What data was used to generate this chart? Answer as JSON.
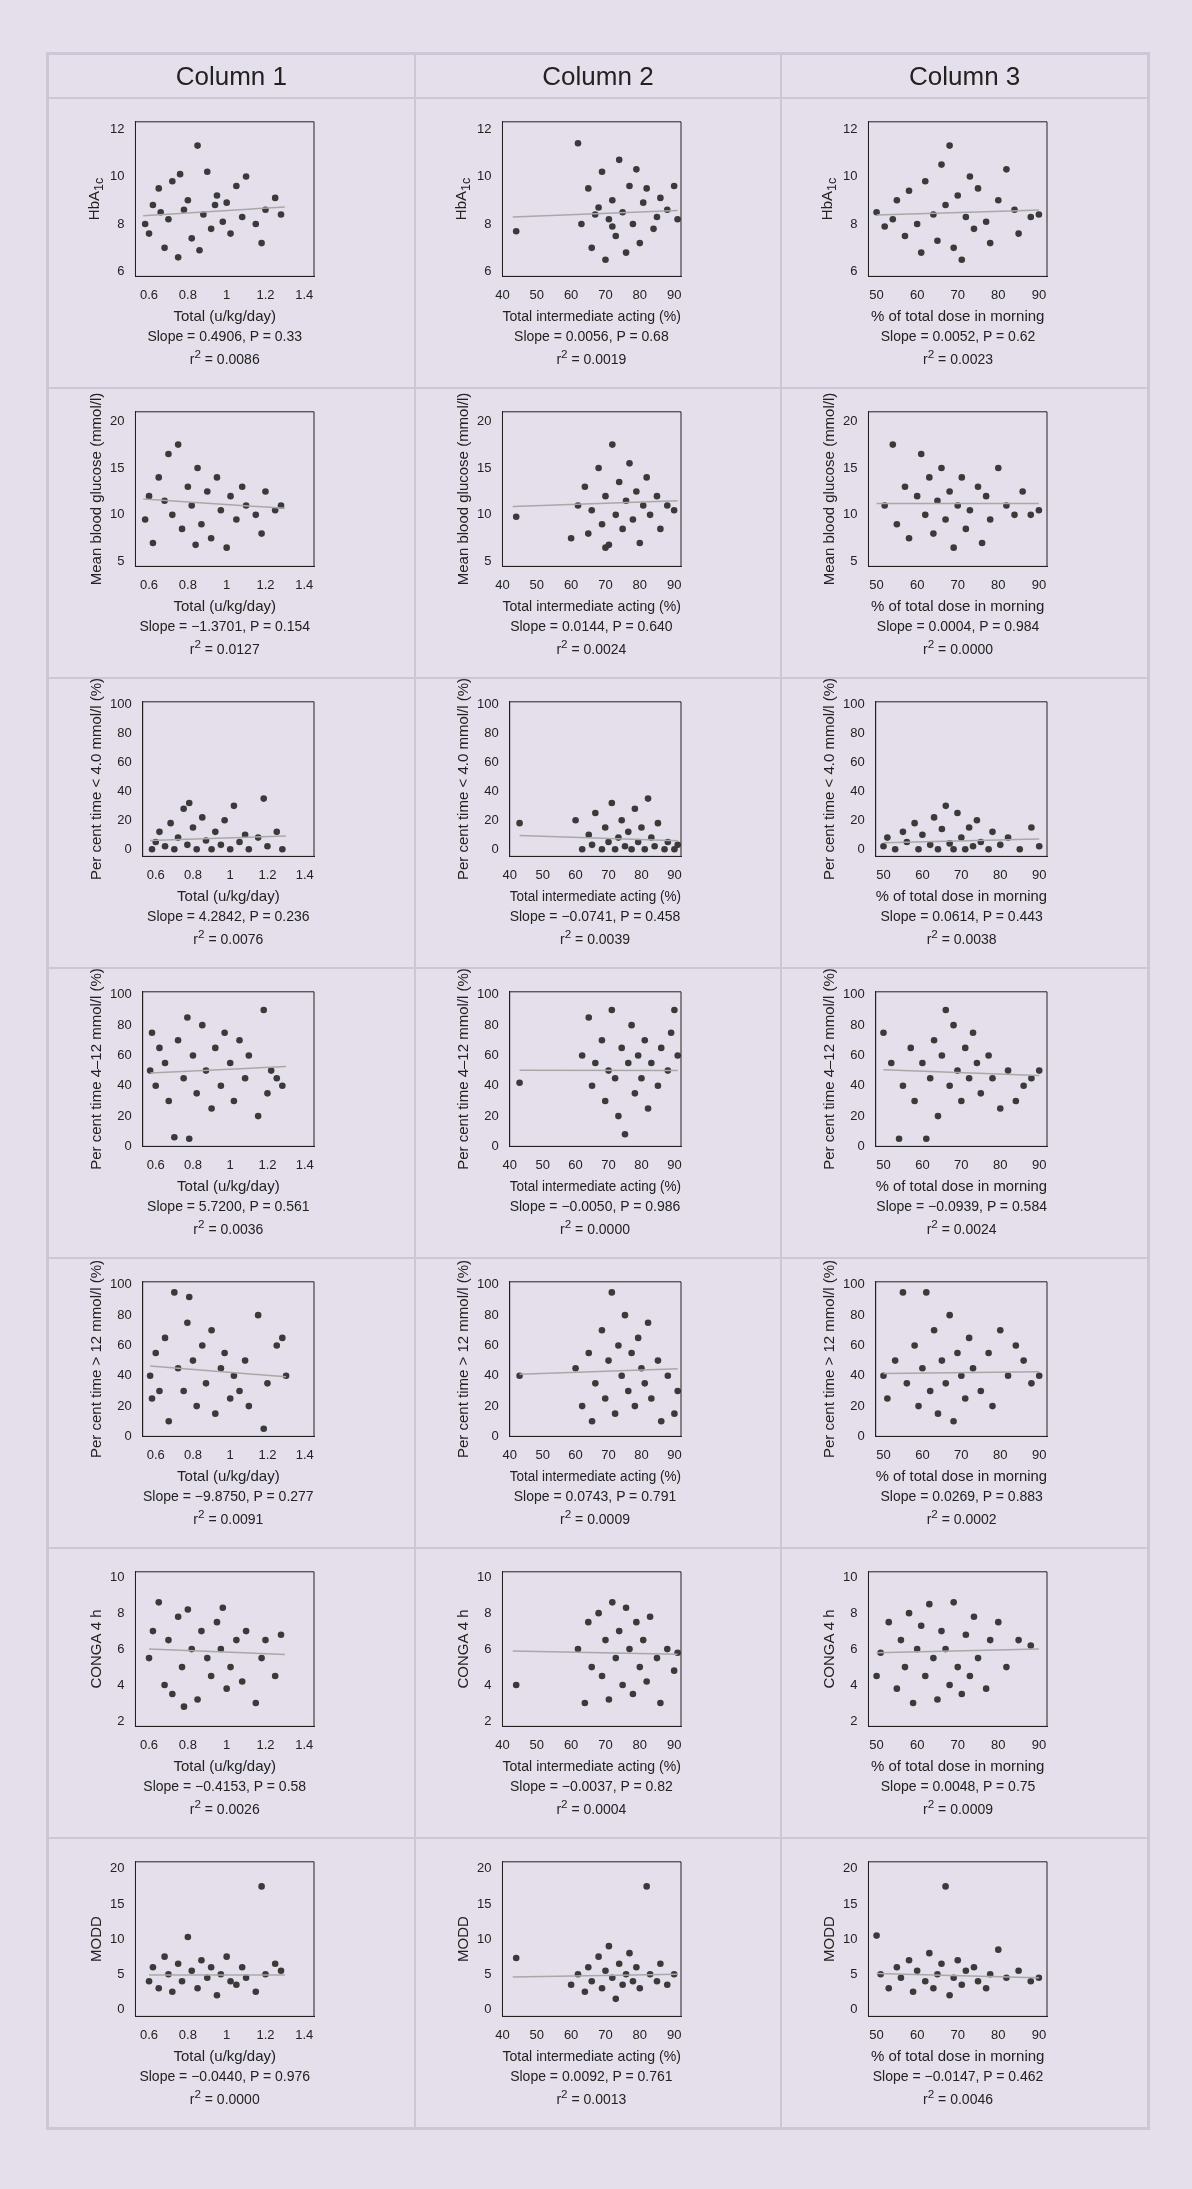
{
  "chart_data": [
    {
      "type": "scatter",
      "title": "Column 1",
      "xlabel": "Total (u/kg/day)",
      "ylabel": "HbA$_{1c}$",
      "marker": "circle",
      "xlim": [
        0.53,
        1.45
      ],
      "xticks": [
        0.6,
        0.8,
        1,
        1.2,
        1.4
      ],
      "ylim": [
        5.8,
        12.3
      ],
      "yticks": [
        6,
        8,
        10,
        12
      ],
      "annotations": [
        "Slope = 0.4906, P = 0.33",
        "r$^{2}$ = 0.0086"
      ],
      "series": [
        {
          "type": "scatter",
          "color": "#3a3a3a",
          "x": [
            0.58,
            0.6,
            0.62,
            0.65,
            0.68,
            0.7,
            0.72,
            0.75,
            0.78,
            0.8,
            0.82,
            0.85,
            0.88,
            0.9,
            0.92,
            0.95,
            0.98,
            1.0,
            1.02,
            1.05,
            1.08,
            1.1,
            1.15,
            1.18,
            1.2,
            1.25,
            1.28,
            0.86,
            0.76,
            0.66,
            0.94
          ],
          "values": [
            8.0,
            7.6,
            8.8,
            9.5,
            7.0,
            8.2,
            9.8,
            6.6,
            8.6,
            9.0,
            7.4,
            11.3,
            8.4,
            10.2,
            7.8,
            9.2,
            8.1,
            8.9,
            7.6,
            9.6,
            8.3,
            10.0,
            8.0,
            7.2,
            8.6,
            9.1,
            8.4,
            6.9,
            10.1,
            8.5,
            8.8
          ]
        },
        {
          "type": "line",
          "color": "#a8a8a8",
          "x": [
            0.57,
            1.3
          ],
          "values": [
            8.35,
            8.72
          ],
          "marker": "none"
        }
      ]
    },
    {
      "type": "scatter",
      "title": "Column 2",
      "xlabel": "Total intermediate acting (%)",
      "ylabel": "HbA$_{1c}$",
      "marker": "circle",
      "xlim": [
        40,
        92
      ],
      "xticks": [
        40,
        50,
        60,
        70,
        80,
        90
      ],
      "ylim": [
        5.8,
        12.3
      ],
      "yticks": [
        6,
        8,
        10,
        12
      ],
      "annotations": [
        "Slope = 0.0056, P = 0.68",
        "r$^{2}$ = 0.0019"
      ],
      "series": [
        {
          "type": "scatter",
          "color": "#3a3a3a",
          "x": [
            44,
            62,
            63,
            65,
            66,
            68,
            69,
            70,
            71,
            72,
            73,
            74,
            75,
            76,
            77,
            78,
            79,
            80,
            81,
            82,
            84,
            85,
            86,
            88,
            90,
            91,
            67,
            72
          ],
          "values": [
            7.7,
            11.4,
            8.0,
            9.5,
            7.0,
            8.7,
            10.2,
            6.5,
            8.2,
            9.0,
            7.5,
            10.7,
            8.5,
            6.8,
            9.6,
            8.0,
            10.3,
            7.2,
            8.9,
            9.5,
            7.8,
            8.3,
            9.1,
            8.6,
            9.6,
            8.2,
            8.4,
            7.9
          ]
        },
        {
          "type": "line",
          "color": "#a8a8a8",
          "x": [
            43,
            91
          ],
          "values": [
            8.3,
            8.57
          ],
          "marker": "none"
        }
      ]
    },
    {
      "type": "scatter",
      "title": "Column 3",
      "xlabel": "% of total dose in morning",
      "ylabel": "HbA$_{1c}$",
      "marker": "circle",
      "xlim": [
        48,
        92
      ],
      "xticks": [
        50,
        60,
        70,
        80,
        90
      ],
      "ylim": [
        5.8,
        12.3
      ],
      "yticks": [
        6,
        8,
        10,
        12
      ],
      "annotations": [
        "Slope = 0.0052, P = 0.62",
        "r$^{2}$ = 0.0023"
      ],
      "series": [
        {
          "type": "scatter",
          "color": "#3a3a3a",
          "x": [
            50,
            52,
            54,
            55,
            57,
            58,
            60,
            61,
            62,
            64,
            65,
            66,
            67,
            68,
            69,
            70,
            71,
            72,
            73,
            74,
            75,
            77,
            78,
            80,
            82,
            84,
            85,
            88,
            90
          ],
          "values": [
            8.5,
            7.9,
            8.2,
            9.0,
            7.5,
            9.4,
            8.0,
            6.8,
            9.8,
            8.4,
            7.3,
            10.5,
            8.8,
            11.3,
            7.0,
            9.2,
            6.5,
            8.3,
            10.0,
            7.8,
            9.5,
            8.1,
            7.2,
            9.0,
            10.3,
            8.6,
            7.6,
            8.3,
            8.4
          ]
        },
        {
          "type": "line",
          "color": "#a8a8a8",
          "x": [
            50,
            90
          ],
          "values": [
            8.38,
            8.59
          ],
          "marker": "none"
        }
      ]
    },
    {
      "type": "scatter",
      "xlabel": "Total (u/kg/day)",
      "ylabel": "Mean blood glucose (mmol/l)",
      "marker": "circle",
      "xlim": [
        0.53,
        1.45
      ],
      "xticks": [
        0.6,
        0.8,
        1,
        1.2,
        1.4
      ],
      "ylim": [
        4.5,
        21
      ],
      "yticks": [
        5,
        10,
        15,
        20
      ],
      "annotations": [
        "Slope = −1.3701, P = 0.154",
        "r$^{2}$ = 0.0127"
      ],
      "series": [
        {
          "type": "scatter",
          "color": "#3a3a3a",
          "x": [
            0.58,
            0.6,
            0.62,
            0.65,
            0.68,
            0.7,
            0.72,
            0.75,
            0.77,
            0.8,
            0.82,
            0.85,
            0.87,
            0.9,
            0.92,
            0.95,
            0.97,
            1.0,
            1.02,
            1.05,
            1.08,
            1.1,
            1.15,
            1.18,
            1.2,
            1.25,
            1.28,
            0.84
          ],
          "values": [
            9.5,
            12,
            7,
            14,
            11.5,
            16.5,
            10,
            17.5,
            8.5,
            13,
            11,
            15,
            9,
            12.5,
            7.5,
            14,
            10.5,
            6.5,
            12,
            9.5,
            13,
            11,
            10,
            8,
            12.5,
            10.5,
            11,
            6.8
          ]
        },
        {
          "type": "line",
          "color": "#a8a8a8",
          "x": [
            0.57,
            1.3
          ],
          "values": [
            11.7,
            10.7
          ],
          "marker": "none"
        }
      ]
    },
    {
      "type": "scatter",
      "xlabel": "Total intermediate acting (%)",
      "ylabel": "Mean blood glucose (mmol/l)",
      "marker": "circle",
      "xlim": [
        40,
        92
      ],
      "xticks": [
        40,
        50,
        60,
        70,
        80,
        90
      ],
      "ylim": [
        4.5,
        21
      ],
      "yticks": [
        5,
        10,
        15,
        20
      ],
      "annotations": [
        "Slope = 0.0144, P = 0.640",
        "r$^{2}$ = 0.0024"
      ],
      "series": [
        {
          "type": "scatter",
          "color": "#3a3a3a",
          "x": [
            44,
            60,
            62,
            64,
            65,
            66,
            68,
            69,
            70,
            71,
            72,
            73,
            74,
            75,
            76,
            77,
            78,
            79,
            80,
            81,
            82,
            83,
            85,
            86,
            88,
            90,
            70
          ],
          "values": [
            9.8,
            7.5,
            11,
            13,
            8,
            10.5,
            15,
            9,
            12,
            6.8,
            17.5,
            10,
            13.5,
            8.5,
            11.5,
            15.5,
            9.5,
            12.5,
            7,
            11,
            14,
            10,
            12,
            8.5,
            11,
            10.5,
            6.5
          ]
        },
        {
          "type": "line",
          "color": "#a8a8a8",
          "x": [
            43,
            91
          ],
          "values": [
            10.9,
            11.5
          ],
          "marker": "none"
        }
      ]
    },
    {
      "type": "scatter",
      "xlabel": "% of total dose in morning",
      "ylabel": "Mean blood glucose (mmol/l)",
      "marker": "circle",
      "xlim": [
        48,
        92
      ],
      "xticks": [
        50,
        60,
        70,
        80,
        90
      ],
      "ylim": [
        4.5,
        21
      ],
      "yticks": [
        5,
        10,
        15,
        20
      ],
      "annotations": [
        "Slope = 0.0004, P = 0.984",
        "r$^{2}$ = 0.0000"
      ],
      "series": [
        {
          "type": "scatter",
          "color": "#3a3a3a",
          "x": [
            52,
            54,
            55,
            57,
            58,
            60,
            61,
            62,
            63,
            64,
            65,
            66,
            67,
            68,
            69,
            70,
            71,
            72,
            73,
            75,
            76,
            77,
            78,
            80,
            82,
            84,
            86,
            88,
            90
          ],
          "values": [
            11,
            17.5,
            9,
            13,
            7.5,
            12,
            16.5,
            10,
            14,
            8,
            11.5,
            15,
            9.5,
            12.5,
            6.5,
            11,
            14,
            8.5,
            10.5,
            13,
            7,
            12,
            9.5,
            15,
            11,
            10,
            12.5,
            10,
            10.5
          ]
        },
        {
          "type": "line",
          "color": "#a8a8a8",
          "x": [
            50,
            90
          ],
          "values": [
            11.2,
            11.2
          ],
          "marker": "none"
        }
      ]
    },
    {
      "type": "scatter",
      "xlabel": "Total (u/kg/day)",
      "ylabel": "Per cent time < 4.0 mmol/l (%)",
      "marker": "circle",
      "xlim": [
        0.53,
        1.45
      ],
      "xticks": [
        0.6,
        0.8,
        1,
        1.2,
        1.4
      ],
      "ylim": [
        -5,
        102
      ],
      "yticks": [
        0,
        20,
        40,
        60,
        80,
        100
      ],
      "annotations": [
        "Slope = 4.2842, P = 0.236",
        "r$^{2}$ = 0.0076"
      ],
      "series": [
        {
          "type": "scatter",
          "color": "#3a3a3a",
          "x": [
            0.58,
            0.6,
            0.62,
            0.65,
            0.68,
            0.7,
            0.72,
            0.75,
            0.77,
            0.8,
            0.82,
            0.85,
            0.87,
            0.9,
            0.92,
            0.95,
            0.97,
            1.0,
            1.02,
            1.05,
            1.08,
            1.1,
            1.15,
            1.18,
            1.2,
            1.25,
            1.28,
            0.78
          ],
          "values": [
            0,
            5,
            12,
            2,
            18,
            0,
            8,
            28,
            3,
            15,
            0,
            22,
            6,
            0,
            12,
            3,
            20,
            0,
            30,
            5,
            10,
            0,
            8,
            35,
            2,
            12,
            0,
            32
          ]
        },
        {
          "type": "line",
          "color": "#a8a8a8",
          "x": [
            0.57,
            1.3
          ],
          "values": [
            6,
            9.1
          ],
          "marker": "none"
        }
      ]
    },
    {
      "type": "scatter",
      "xlabel": "Total intermediate acting (%)",
      "ylabel": "Per cent time < 4.0 mmol/l (%)",
      "marker": "circle",
      "xlim": [
        40,
        92
      ],
      "xticks": [
        40,
        50,
        60,
        70,
        80,
        90
      ],
      "ylim": [
        -5,
        102
      ],
      "yticks": [
        0,
        20,
        40,
        60,
        80,
        100
      ],
      "annotations": [
        "Slope = −0.0741, P = 0.458",
        "r$^{2}$ = 0.0039"
      ],
      "series": [
        {
          "type": "scatter",
          "color": "#3a3a3a",
          "x": [
            43,
            60,
            62,
            64,
            65,
            66,
            68,
            69,
            70,
            71,
            72,
            73,
            74,
            75,
            76,
            77,
            78,
            79,
            80,
            81,
            82,
            83,
            84,
            85,
            87,
            88,
            90,
            91
          ],
          "values": [
            18,
            20,
            0,
            10,
            3,
            25,
            0,
            15,
            5,
            32,
            0,
            8,
            20,
            2,
            12,
            0,
            28,
            5,
            15,
            0,
            35,
            8,
            2,
            18,
            0,
            5,
            0,
            3
          ]
        },
        {
          "type": "line",
          "color": "#a8a8a8",
          "x": [
            43,
            91
          ],
          "values": [
            9.5,
            5.9
          ],
          "marker": "none"
        }
      ]
    },
    {
      "type": "scatter",
      "xlabel": "% of total dose in morning",
      "ylabel": "Per cent time < 4.0 mmol/l (%)",
      "marker": "circle",
      "xlim": [
        48,
        92
      ],
      "xticks": [
        50,
        60,
        70,
        80,
        90
      ],
      "ylim": [
        -5,
        102
      ],
      "yticks": [
        0,
        20,
        40,
        60,
        80,
        100
      ],
      "annotations": [
        "Slope = 0.0614, P = 0.443",
        "r$^{2}$ = 0.0038"
      ],
      "series": [
        {
          "type": "scatter",
          "color": "#3a3a3a",
          "x": [
            50,
            51,
            53,
            55,
            56,
            58,
            59,
            60,
            62,
            63,
            64,
            65,
            66,
            67,
            68,
            69,
            70,
            71,
            72,
            73,
            74,
            75,
            77,
            78,
            80,
            82,
            85,
            88,
            90
          ],
          "values": [
            2,
            8,
            0,
            12,
            5,
            18,
            0,
            10,
            3,
            22,
            0,
            14,
            30,
            4,
            0,
            25,
            8,
            0,
            15,
            2,
            20,
            5,
            0,
            12,
            3,
            8,
            0,
            15,
            2
          ]
        },
        {
          "type": "line",
          "color": "#a8a8a8",
          "x": [
            50,
            90
          ],
          "values": [
            4.5,
            7
          ],
          "marker": "none"
        }
      ]
    },
    {
      "type": "scatter",
      "xlabel": "Total (u/kg/day)",
      "ylabel": "Per cent time 4–12 mmol/l (%)",
      "marker": "circle",
      "xlim": [
        0.53,
        1.45
      ],
      "xticks": [
        0.6,
        0.8,
        1,
        1.2,
        1.4
      ],
      "ylim": [
        0,
        102
      ],
      "yticks": [
        0,
        20,
        40,
        60,
        80,
        100
      ],
      "annotations": [
        "Slope = 5.7200, P = 0.561",
        "r$^{2}$ = 0.0036"
      ],
      "series": [
        {
          "type": "scatter",
          "color": "#3a3a3a",
          "x": [
            0.57,
            0.58,
            0.6,
            0.62,
            0.65,
            0.67,
            0.7,
            0.72,
            0.75,
            0.77,
            0.78,
            0.8,
            0.82,
            0.85,
            0.87,
            0.9,
            0.92,
            0.95,
            0.97,
            1.0,
            1.02,
            1.05,
            1.08,
            1.1,
            1.15,
            1.18,
            1.2,
            1.22,
            1.25,
            1.28
          ],
          "values": [
            50,
            75,
            40,
            65,
            55,
            30,
            6,
            70,
            45,
            85,
            5,
            60,
            35,
            80,
            50,
            25,
            65,
            40,
            75,
            55,
            30,
            70,
            45,
            60,
            20,
            90,
            35,
            50,
            45,
            40
          ]
        },
        {
          "type": "line",
          "color": "#a8a8a8",
          "x": [
            0.57,
            1.3
          ],
          "values": [
            48.5,
            52.7
          ],
          "marker": "none"
        }
      ]
    },
    {
      "type": "scatter",
      "xlabel": "Total intermediate acting (%)",
      "ylabel": "Per cent time 4–12 mmol/l (%)",
      "marker": "circle",
      "xlim": [
        40,
        92
      ],
      "xticks": [
        40,
        50,
        60,
        70,
        80,
        90
      ],
      "ylim": [
        0,
        102
      ],
      "yticks": [
        0,
        20,
        40,
        60,
        80,
        100
      ],
      "annotations": [
        "Slope = −0.0050, P = 0.986",
        "r$^{2}$ = 0.0000"
      ],
      "series": [
        {
          "type": "scatter",
          "color": "#3a3a3a",
          "x": [
            43,
            62,
            64,
            65,
            66,
            68,
            69,
            70,
            71,
            72,
            73,
            74,
            75,
            76,
            77,
            78,
            79,
            80,
            81,
            82,
            83,
            85,
            86,
            88,
            89,
            90,
            91
          ],
          "values": [
            42,
            60,
            85,
            40,
            55,
            70,
            30,
            50,
            90,
            45,
            20,
            65,
            8,
            55,
            80,
            35,
            60,
            45,
            70,
            25,
            55,
            40,
            65,
            50,
            75,
            90,
            60
          ]
        },
        {
          "type": "line",
          "color": "#a8a8a8",
          "x": [
            43,
            91
          ],
          "values": [
            50.2,
            50
          ],
          "marker": "none"
        }
      ]
    },
    {
      "type": "scatter",
      "xlabel": "% of total dose in morning",
      "ylabel": "Per cent time 4–12 mmol/l (%)",
      "marker": "circle",
      "xlim": [
        48,
        92
      ],
      "xticks": [
        50,
        60,
        70,
        80,
        90
      ],
      "ylim": [
        0,
        102
      ],
      "yticks": [
        0,
        20,
        40,
        60,
        80,
        100
      ],
      "annotations": [
        "Slope = −0.0939, P = 0.584",
        "r$^{2}$ = 0.0024"
      ],
      "series": [
        {
          "type": "scatter",
          "color": "#3a3a3a",
          "x": [
            50,
            52,
            54,
            55,
            57,
            58,
            60,
            61,
            62,
            63,
            64,
            65,
            66,
            67,
            68,
            69,
            70,
            71,
            72,
            73,
            74,
            75,
            77,
            78,
            80,
            82,
            84,
            86,
            88,
            90
          ],
          "values": [
            75,
            55,
            5,
            40,
            65,
            30,
            55,
            5,
            45,
            70,
            20,
            60,
            90,
            40,
            80,
            50,
            30,
            65,
            45,
            75,
            55,
            35,
            60,
            45,
            25,
            50,
            30,
            40,
            45,
            50
          ]
        },
        {
          "type": "line",
          "color": "#a8a8a8",
          "x": [
            50,
            90
          ],
          "values": [
            50.5,
            46.7
          ],
          "marker": "none"
        }
      ]
    },
    {
      "type": "scatter",
      "xlabel": "Total (u/kg/day)",
      "ylabel": "Per cent time > 12 mmol/l (%)",
      "marker": "circle",
      "xlim": [
        0.53,
        1.45
      ],
      "xticks": [
        0.6,
        0.8,
        1,
        1.2,
        1.4
      ],
      "ylim": [
        0,
        102
      ],
      "yticks": [
        0,
        20,
        40,
        60,
        80,
        100
      ],
      "annotations": [
        "Slope = −9.8750, P = 0.277",
        "r$^{2}$ = 0.0091"
      ],
      "series": [
        {
          "type": "scatter",
          "color": "#3a3a3a",
          "x": [
            0.57,
            0.58,
            0.6,
            0.62,
            0.65,
            0.67,
            0.7,
            0.72,
            0.75,
            0.77,
            0.78,
            0.8,
            0.82,
            0.85,
            0.87,
            0.9,
            0.92,
            0.95,
            0.97,
            1.0,
            1.02,
            1.05,
            1.08,
            1.1,
            1.15,
            1.18,
            1.2,
            1.25,
            1.28,
            1.3
          ],
          "values": [
            40,
            25,
            55,
            30,
            65,
            10,
            95,
            45,
            30,
            75,
            92,
            50,
            20,
            60,
            35,
            70,
            15,
            45,
            55,
            25,
            40,
            30,
            50,
            20,
            80,
            5,
            35,
            60,
            65,
            40
          ]
        },
        {
          "type": "line",
          "color": "#a8a8a8",
          "x": [
            0.57,
            1.3
          ],
          "values": [
            46.5,
            39.3
          ],
          "marker": "none"
        }
      ]
    },
    {
      "type": "scatter",
      "xlabel": "Total intermediate acting (%)",
      "ylabel": "Per cent time > 12 mmol/l (%)",
      "marker": "circle",
      "xlim": [
        40,
        92
      ],
      "xticks": [
        40,
        50,
        60,
        70,
        80,
        90
      ],
      "ylim": [
        0,
        102
      ],
      "yticks": [
        0,
        20,
        40,
        60,
        80,
        100
      ],
      "annotations": [
        "Slope = 0.0743, P = 0.791",
        "r$^{2}$ = 0.0009"
      ],
      "series": [
        {
          "type": "scatter",
          "color": "#3a3a3a",
          "x": [
            43,
            60,
            62,
            64,
            65,
            66,
            68,
            69,
            70,
            71,
            72,
            73,
            74,
            75,
            76,
            77,
            78,
            79,
            80,
            81,
            82,
            83,
            85,
            86,
            88,
            90,
            91
          ],
          "values": [
            40,
            45,
            20,
            55,
            10,
            35,
            70,
            25,
            50,
            95,
            15,
            60,
            40,
            80,
            30,
            55,
            20,
            65,
            45,
            35,
            75,
            25,
            50,
            10,
            40,
            15,
            30
          ]
        },
        {
          "type": "line",
          "color": "#a8a8a8",
          "x": [
            43,
            91
          ],
          "values": [
            41,
            44.6
          ],
          "marker": "none"
        }
      ]
    },
    {
      "type": "scatter",
      "xlabel": "% of total dose in morning",
      "ylabel": "Per cent time > 12 mmol/l (%)",
      "marker": "circle",
      "xlim": [
        48,
        92
      ],
      "xticks": [
        50,
        60,
        70,
        80,
        90
      ],
      "ylim": [
        0,
        102
      ],
      "yticks": [
        0,
        20,
        40,
        60,
        80,
        100
      ],
      "annotations": [
        "Slope = 0.0269, P = 0.883",
        "r$^{2}$ = 0.0002"
      ],
      "series": [
        {
          "type": "scatter",
          "color": "#3a3a3a",
          "x": [
            50,
            51,
            53,
            55,
            56,
            58,
            59,
            60,
            61,
            62,
            63,
            64,
            65,
            66,
            67,
            68,
            69,
            70,
            71,
            72,
            73,
            75,
            77,
            78,
            80,
            82,
            84,
            86,
            88,
            90
          ],
          "values": [
            40,
            25,
            50,
            95,
            35,
            60,
            20,
            45,
            95,
            30,
            70,
            15,
            50,
            35,
            80,
            10,
            55,
            40,
            25,
            65,
            45,
            30,
            55,
            20,
            70,
            40,
            60,
            50,
            35,
            40
          ]
        },
        {
          "type": "line",
          "color": "#a8a8a8",
          "x": [
            50,
            90
          ],
          "values": [
            41.5,
            42.6
          ],
          "marker": "none"
        }
      ]
    },
    {
      "type": "scatter",
      "xlabel": "Total (u/kg/day)",
      "ylabel": "CONGA 4 h",
      "marker": "circle",
      "xlim": [
        0.53,
        1.45
      ],
      "xticks": [
        0.6,
        0.8,
        1,
        1.2,
        1.4
      ],
      "ylim": [
        1.7,
        10.3
      ],
      "yticks": [
        2,
        4,
        6,
        8,
        10
      ],
      "annotations": [
        "Slope = −0.4153, P = 0.58",
        "r$^{2}$ = 0.0026"
      ],
      "series": [
        {
          "type": "scatter",
          "color": "#3a3a3a",
          "x": [
            0.6,
            0.62,
            0.65,
            0.68,
            0.7,
            0.72,
            0.75,
            0.77,
            0.8,
            0.82,
            0.85,
            0.87,
            0.9,
            0.92,
            0.95,
            0.97,
            1.0,
            1.02,
            1.05,
            1.08,
            1.1,
            1.15,
            1.18,
            1.2,
            1.25,
            1.28,
            0.78,
            0.98
          ],
          "values": [
            5.5,
            7,
            8.6,
            4,
            6.5,
            3.5,
            7.8,
            5,
            8.2,
            6,
            3.2,
            7,
            5.5,
            4.5,
            7.5,
            6,
            3.8,
            5,
            6.5,
            4.2,
            7,
            3,
            5.5,
            6.5,
            4.5,
            6.8,
            2.8,
            8.3
          ]
        },
        {
          "type": "line",
          "color": "#a8a8a8",
          "x": [
            0.6,
            1.3
          ],
          "values": [
            6,
            5.7
          ],
          "marker": "none"
        }
      ]
    },
    {
      "type": "scatter",
      "xlabel": "Total intermediate acting (%)",
      "ylabel": "CONGA 4 h",
      "marker": "circle",
      "xlim": [
        40,
        92
      ],
      "xticks": [
        40,
        50,
        60,
        70,
        80,
        90
      ],
      "ylim": [
        1.7,
        10.3
      ],
      "yticks": [
        2,
        4,
        6,
        8,
        10
      ],
      "annotations": [
        "Slope = −0.0037, P = 0.82",
        "r$^{2}$ = 0.0004"
      ],
      "series": [
        {
          "type": "scatter",
          "color": "#3a3a3a",
          "x": [
            44,
            62,
            64,
            65,
            66,
            68,
            69,
            70,
            71,
            72,
            73,
            74,
            75,
            76,
            77,
            78,
            79,
            80,
            81,
            82,
            83,
            85,
            86,
            88,
            90,
            91
          ],
          "values": [
            4,
            6,
            3,
            7.5,
            5,
            8,
            4.5,
            6.5,
            3.2,
            8.6,
            5.5,
            7,
            4,
            8.3,
            6,
            3.5,
            7.5,
            5,
            6.5,
            4.2,
            7.8,
            5.5,
            3,
            6,
            4.8,
            5.8
          ]
        },
        {
          "type": "line",
          "color": "#a8a8a8",
          "x": [
            43,
            91
          ],
          "values": [
            5.9,
            5.72
          ],
          "marker": "none"
        }
      ]
    },
    {
      "type": "scatter",
      "xlabel": "% of total dose in morning",
      "ylabel": "CONGA 4 h",
      "marker": "circle",
      "xlim": [
        48,
        92
      ],
      "xticks": [
        50,
        60,
        70,
        80,
        90
      ],
      "ylim": [
        1.7,
        10.3
      ],
      "yticks": [
        2,
        4,
        6,
        8,
        10
      ],
      "annotations": [
        "Slope = 0.0048, P = 0.75",
        "r$^{2}$ = 0.0009"
      ],
      "series": [
        {
          "type": "scatter",
          "color": "#3a3a3a",
          "x": [
            50,
            51,
            53,
            55,
            56,
            57,
            58,
            59,
            60,
            61,
            62,
            63,
            64,
            65,
            66,
            67,
            68,
            69,
            70,
            71,
            72,
            73,
            74,
            75,
            77,
            78,
            80,
            82,
            85,
            88
          ],
          "values": [
            4.5,
            5.8,
            7.5,
            3.8,
            6.5,
            5,
            8,
            3,
            6,
            7.3,
            4.5,
            8.5,
            5.5,
            3.2,
            7,
            6,
            4,
            8.6,
            5,
            3.5,
            6.8,
            4.5,
            7.8,
            5.5,
            3.8,
            6.5,
            7.5,
            5,
            6.5,
            6.2
          ]
        },
        {
          "type": "line",
          "color": "#a8a8a8",
          "x": [
            50,
            90
          ],
          "values": [
            5.8,
            6
          ],
          "marker": "none"
        }
      ]
    },
    {
      "type": "scatter",
      "xlabel": "Total (u/kg/day)",
      "ylabel": "MODD",
      "marker": "circle",
      "xlim": [
        0.53,
        1.45
      ],
      "xticks": [
        0.6,
        0.8,
        1,
        1.2,
        1.4
      ],
      "ylim": [
        -1,
        21
      ],
      "yticks": [
        0,
        5,
        10,
        15,
        20
      ],
      "annotations": [
        "Slope = −0.0440, P = 0.976",
        "r$^{2}$ = 0.0000"
      ],
      "series": [
        {
          "type": "scatter",
          "color": "#3a3a3a",
          "x": [
            0.6,
            0.62,
            0.65,
            0.68,
            0.7,
            0.72,
            0.75,
            0.77,
            0.8,
            0.82,
            0.85,
            0.87,
            0.9,
            0.92,
            0.95,
            0.97,
            1.0,
            1.02,
            1.05,
            1.08,
            1.1,
            1.15,
            1.18,
            1.2,
            1.25,
            1.28
          ],
          "values": [
            4,
            6,
            3,
            7.5,
            5,
            2.5,
            6.5,
            4,
            10.3,
            5.5,
            3,
            7,
            4.5,
            6,
            2,
            5,
            7.5,
            4,
            3.5,
            6,
            4.5,
            2.5,
            17.5,
            5,
            6.5,
            5.5
          ]
        },
        {
          "type": "line",
          "color": "#a8a8a8",
          "x": [
            0.6,
            1.3
          ],
          "values": [
            4.9,
            4.9
          ],
          "marker": "none"
        }
      ]
    },
    {
      "type": "scatter",
      "xlabel": "Total intermediate acting (%)",
      "ylabel": "MODD",
      "marker": "circle",
      "xlim": [
        40,
        92
      ],
      "xticks": [
        40,
        50,
        60,
        70,
        80,
        90
      ],
      "ylim": [
        -1,
        21
      ],
      "yticks": [
        0,
        5,
        10,
        15,
        20
      ],
      "annotations": [
        "Slope = 0.0092, P = 0.761",
        "r$^{2}$ = 0.0013"
      ],
      "series": [
        {
          "type": "scatter",
          "color": "#3a3a3a",
          "x": [
            44,
            60,
            62,
            64,
            65,
            66,
            68,
            69,
            70,
            71,
            72,
            73,
            74,
            75,
            76,
            77,
            78,
            79,
            80,
            82,
            83,
            85,
            86,
            88,
            90
          ],
          "values": [
            7.3,
            3.5,
            5,
            2.5,
            6,
            4,
            7.5,
            3,
            5.5,
            9,
            4.5,
            1.5,
            6.5,
            3.5,
            5,
            8,
            4,
            6,
            3,
            17.5,
            5,
            4,
            6.5,
            3.5,
            5
          ]
        },
        {
          "type": "line",
          "color": "#a8a8a8",
          "x": [
            43,
            91
          ],
          "values": [
            4.6,
            5
          ],
          "marker": "none"
        }
      ]
    },
    {
      "type": "scatter",
      "xlabel": "% of total dose in morning",
      "ylabel": "MODD",
      "marker": "circle",
      "xlim": [
        48,
        92
      ],
      "xticks": [
        50,
        60,
        70,
        80,
        90
      ],
      "ylim": [
        -1,
        21
      ],
      "yticks": [
        0,
        5,
        10,
        15,
        20
      ],
      "annotations": [
        "Slope = −0.0147, P = 0.462",
        "r$^{2}$ = 0.0046"
      ],
      "series": [
        {
          "type": "scatter",
          "color": "#3a3a3a",
          "x": [
            50,
            51,
            53,
            55,
            56,
            58,
            59,
            60,
            62,
            63,
            64,
            65,
            66,
            67,
            68,
            69,
            70,
            71,
            72,
            74,
            75,
            77,
            78,
            80,
            82,
            85,
            88,
            90
          ],
          "values": [
            10.5,
            5,
            3,
            6,
            4.5,
            7,
            2.5,
            5.5,
            4,
            8,
            3,
            5,
            6.5,
            17.5,
            2,
            4.5,
            7,
            3.5,
            5.5,
            6,
            4,
            3,
            5,
            8.5,
            4.5,
            5.5,
            4,
            4.5
          ]
        },
        {
          "type": "line",
          "color": "#a8a8a8",
          "x": [
            50,
            90
          ],
          "values": [
            5.1,
            4.5
          ],
          "marker": "none"
        }
      ]
    }
  ]
}
